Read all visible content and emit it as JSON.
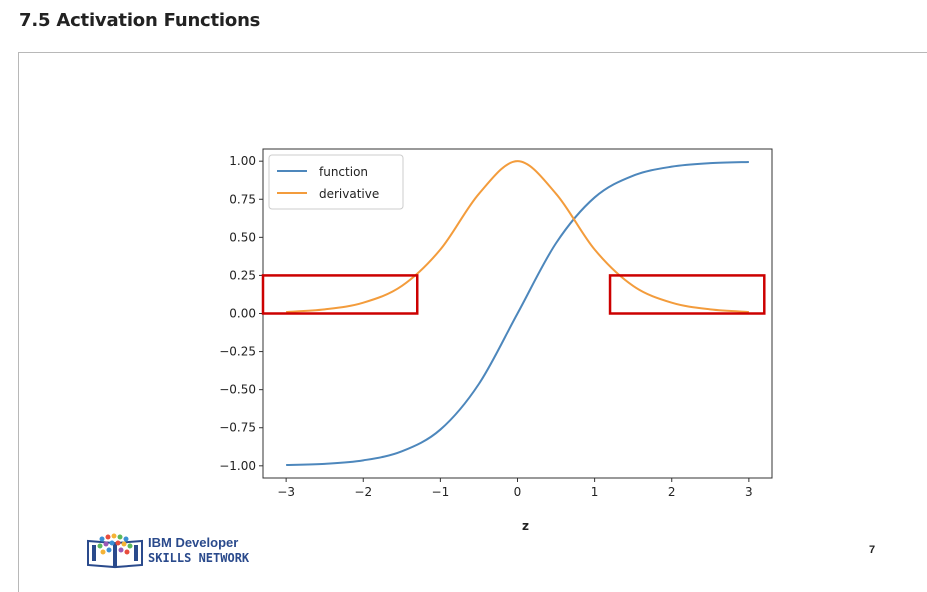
{
  "page": {
    "heading": "7.5 Activation Functions",
    "page_number": "7"
  },
  "logo": {
    "line1": "IBM Developer",
    "line2": "SKILLS NETWORK",
    "brand_color": "#2a4a8c"
  },
  "chart_data": {
    "type": "line",
    "xlabel": "z",
    "ylabel": "",
    "xlim": [
      -3.3,
      3.3
    ],
    "ylim": [
      -1.08,
      1.08
    ],
    "xticks": [
      -3,
      -2,
      -1,
      0,
      1,
      2,
      3
    ],
    "xtick_labels": [
      "−3",
      "−2",
      "−1",
      "0",
      "1",
      "2",
      "3"
    ],
    "yticks": [
      1.0,
      0.75,
      0.5,
      0.25,
      0.0,
      -0.25,
      -0.5,
      -0.75,
      -1.0
    ],
    "ytick_labels": [
      "1.00",
      "0.75",
      "0.50",
      "0.25",
      "0.00",
      "−0.25",
      "−0.50",
      "−0.75",
      "−1.00"
    ],
    "legend_position": "top-left",
    "grid": false,
    "x": [
      -3.0,
      -2.5,
      -2.0,
      -1.5,
      -1.0,
      -0.5,
      0.0,
      0.5,
      1.0,
      1.5,
      2.0,
      2.5,
      3.0
    ],
    "series": [
      {
        "name": "function",
        "color": "#4d87bc",
        "values": [
          -0.995,
          -0.987,
          -0.964,
          -0.905,
          -0.762,
          -0.462,
          0.0,
          0.462,
          0.762,
          0.905,
          0.964,
          0.987,
          0.995
        ]
      },
      {
        "name": "derivative",
        "color": "#f39c3c",
        "values": [
          0.01,
          0.027,
          0.071,
          0.181,
          0.42,
          0.786,
          1.0,
          0.786,
          0.42,
          0.181,
          0.071,
          0.027,
          0.01
        ]
      }
    ],
    "annotations": [
      {
        "type": "rect",
        "x_range": [
          -3.3,
          -1.3
        ],
        "y_range": [
          0.0,
          0.25
        ],
        "color": "#cc0000"
      },
      {
        "type": "rect",
        "x_range": [
          1.2,
          3.2
        ],
        "y_range": [
          0.0,
          0.25
        ],
        "color": "#cc0000"
      }
    ]
  }
}
